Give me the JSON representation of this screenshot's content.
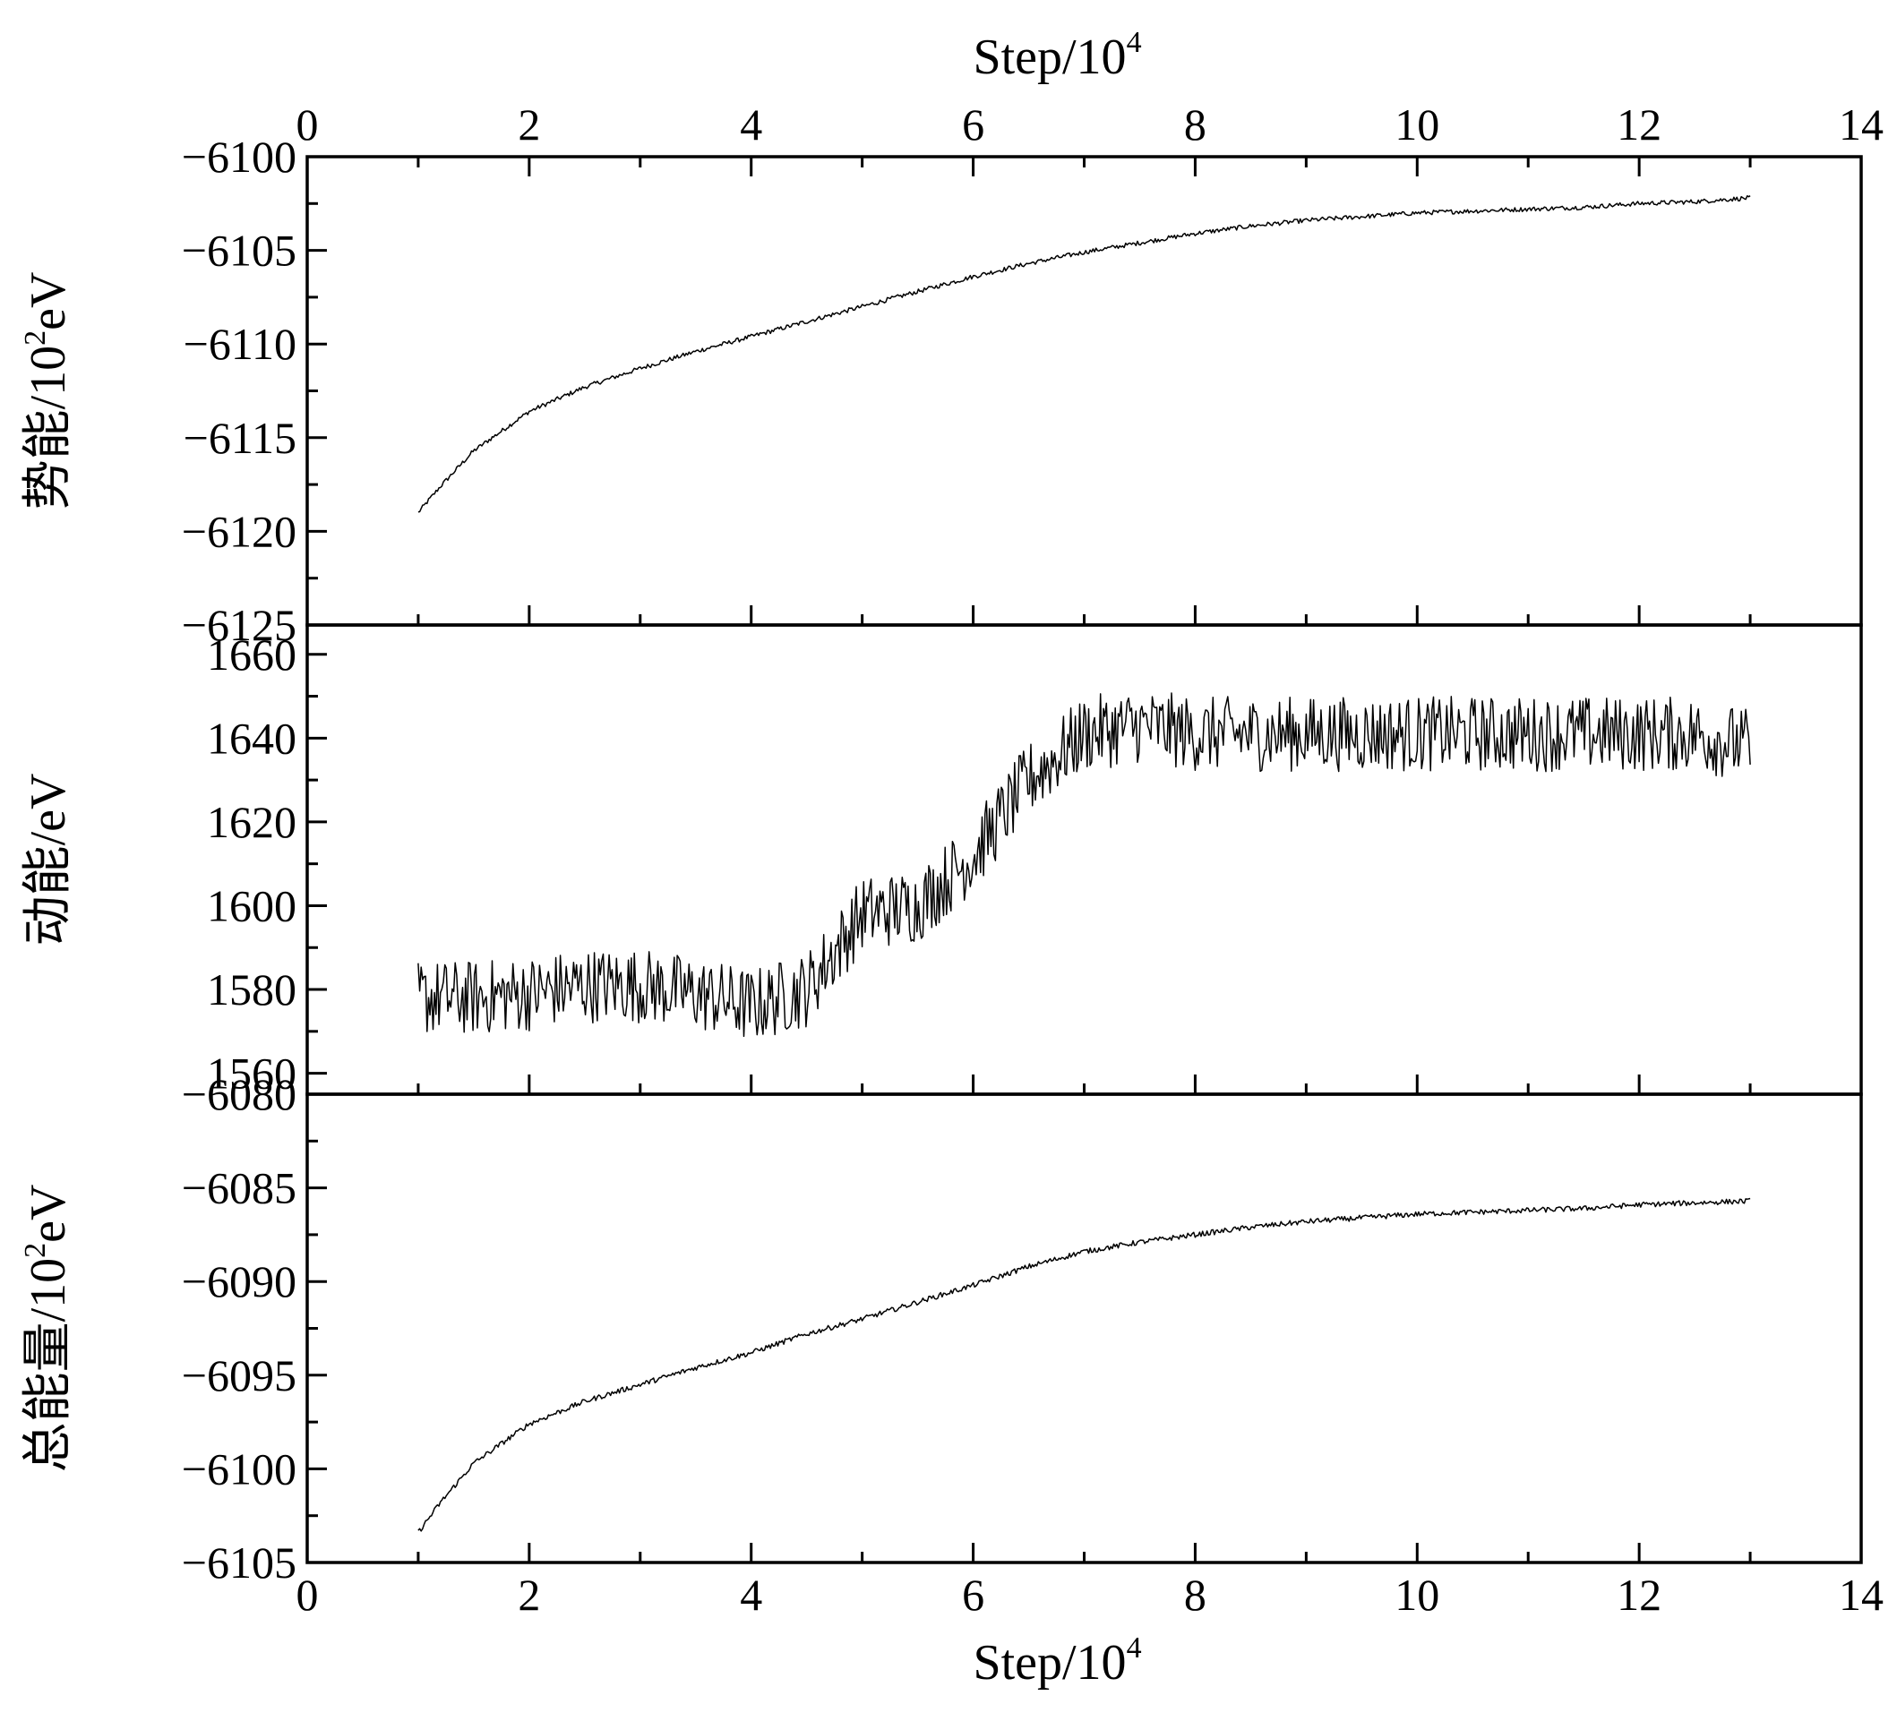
{
  "chart_data": {
    "type": "line",
    "layout": "three vertically stacked panels sharing one x axis",
    "x_axis": {
      "label": "Step/10",
      "label_superscript": "4",
      "range": [
        0,
        14
      ],
      "ticks": [
        "0",
        "2",
        "4",
        "6",
        "8",
        "10",
        "12",
        "14"
      ],
      "shown_on": [
        "top",
        "bottom"
      ]
    },
    "panels": [
      {
        "id": "potential",
        "ylabel": "势能/10",
        "ylabel_superscript": "2",
        "ylabel_unit": "eV",
        "ylim": [
          -6125,
          -6100
        ],
        "y_ticks": [
          "−6100",
          "−6105",
          "−6110",
          "−6115",
          "−6120",
          "−6125"
        ],
        "series": [
          {
            "x": [
              1.0,
              1.2,
              1.5,
              2.0,
              2.5,
              3.0,
              3.5,
              4.0,
              4.5,
              5.0,
              5.5,
              6.0,
              6.5,
              7.0,
              7.5,
              8.0,
              8.5,
              9.0,
              9.5,
              10.0,
              10.5,
              11.0,
              11.5,
              12.0,
              12.5,
              13.0
            ],
            "y": [
              -6119.0,
              -6117.6,
              -6115.7,
              -6113.6,
              -6112.3,
              -6111.3,
              -6110.4,
              -6109.6,
              -6108.8,
              -6108.0,
              -6107.2,
              -6106.4,
              -6105.7,
              -6105.1,
              -6104.6,
              -6104.1,
              -6103.7,
              -6103.4,
              -6103.2,
              -6103.0,
              -6102.9,
              -6102.8,
              -6102.7,
              -6102.5,
              -6102.4,
              -6102.2
            ],
            "noise": 0.12
          }
        ]
      },
      {
        "id": "kinetic",
        "ylabel": "动能/eV",
        "ylim": [
          1555,
          1667
        ],
        "y_ticks": [
          "1560",
          "1580",
          "1600",
          "1620",
          "1640",
          "1660"
        ],
        "series": [
          {
            "x": [
              1.0,
              1.5,
              2.0,
              2.5,
              3.0,
              3.5,
              4.0,
              4.5,
              5.0,
              5.5,
              6.0,
              6.5,
              7.0,
              7.5,
              8.0,
              8.5,
              9.0,
              9.5,
              10.0,
              10.5,
              11.0,
              11.5,
              12.0,
              12.5,
              13.0
            ],
            "y": [
              1578,
              1578,
              1579,
              1581,
              1581,
              1579,
              1576,
              1580,
              1598,
              1600,
              1612,
              1630,
              1641,
              1643,
              1641,
              1641,
              1641,
              1641,
              1641,
              1641,
              1641,
              1641,
              1641,
              1641,
              1638
            ],
            "noise": 9
          }
        ]
      },
      {
        "id": "total",
        "ylabel": "总能量/10",
        "ylabel_superscript": "2",
        "ylabel_unit": "eV",
        "ylim": [
          -6105,
          -6080
        ],
        "y_ticks": [
          "−6080",
          "−6085",
          "−6090",
          "−6095",
          "−6100",
          "−6105"
        ],
        "series": [
          {
            "x": [
              1.0,
              1.2,
              1.5,
              2.0,
              2.5,
              3.0,
              3.5,
              4.0,
              4.5,
              5.0,
              5.5,
              6.0,
              6.5,
              7.0,
              7.5,
              8.0,
              8.5,
              9.0,
              9.5,
              10.0,
              10.5,
              11.0,
              11.5,
              12.0,
              12.5,
              13.0
            ],
            "y": [
              -6103.4,
              -6101.8,
              -6099.7,
              -6097.6,
              -6096.4,
              -6095.5,
              -6094.6,
              -6093.8,
              -6092.8,
              -6092.0,
              -6091.1,
              -6090.2,
              -6089.2,
              -6088.4,
              -6087.9,
              -6087.5,
              -6087.1,
              -6086.8,
              -6086.6,
              -6086.4,
              -6086.3,
              -6086.2,
              -6086.1,
              -6085.9,
              -6085.8,
              -6085.7
            ],
            "noise": 0.14
          }
        ]
      }
    ]
  }
}
